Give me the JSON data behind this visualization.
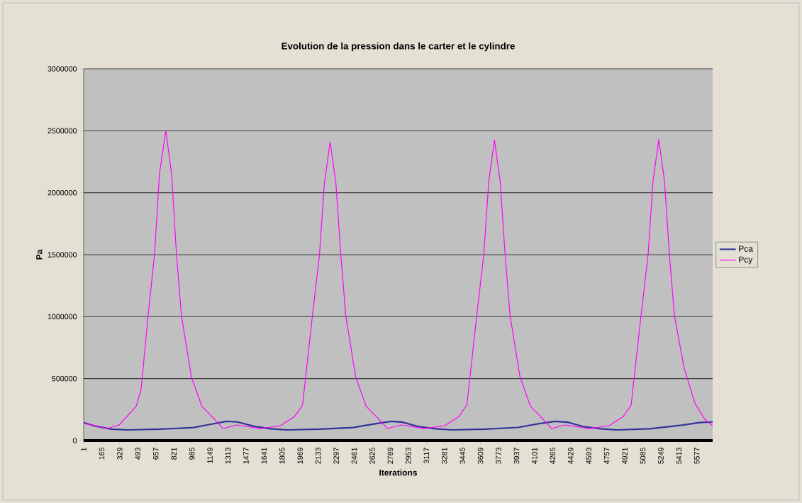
{
  "chart_data": {
    "type": "line",
    "title": "Evolution de la pression dans le carter et le cylindre",
    "xlabel": "Iterations",
    "ylabel": "Pa",
    "xlim": [
      1,
      5720
    ],
    "ylim": [
      0,
      3000000
    ],
    "xticks": [
      1,
      165,
      329,
      493,
      657,
      821,
      985,
      1149,
      1313,
      1477,
      1641,
      1805,
      1969,
      2133,
      2297,
      2461,
      2625,
      2789,
      2953,
      3117,
      3281,
      3445,
      3609,
      3773,
      3937,
      4101,
      4265,
      4429,
      4593,
      4757,
      4921,
      5085,
      5249,
      5413,
      5577
    ],
    "yticks": [
      0,
      500000,
      1000000,
      1500000,
      2000000,
      2500000,
      3000000
    ],
    "grid": "y",
    "legend": "right",
    "series": [
      {
        "name": "Pca",
        "color": "#333399",
        "x": [
          1,
          100,
          250,
          400,
          700,
          1000,
          1150,
          1300,
          1400,
          1550,
          1700,
          1850,
          2150,
          2450,
          2650,
          2800,
          2900,
          3050,
          3200,
          3350,
          3650,
          3950,
          4150,
          4290,
          4400,
          4550,
          4700,
          4850,
          5150,
          5450,
          5600,
          5720
        ],
        "values": [
          145000,
          118000,
          92000,
          86000,
          92000,
          105000,
          130000,
          155000,
          150000,
          115000,
          95000,
          86000,
          92000,
          105000,
          135000,
          155000,
          148000,
          112000,
          95000,
          86000,
          92000,
          106000,
          138000,
          155000,
          148000,
          112000,
          95000,
          86000,
          95000,
          125000,
          145000,
          150000
        ]
      },
      {
        "name": "Pcy",
        "color": "#ff00ff",
        "x": [
          1,
          213,
          323,
          478,
          523,
          587,
          645,
          690,
          748,
          800,
          845,
          890,
          980,
          1076,
          1166,
          1269,
          1392,
          1611,
          1791,
          1920,
          1991,
          2081,
          2145,
          2190,
          2242,
          2294,
          2339,
          2384,
          2474,
          2570,
          2660,
          2763,
          2886,
          3105,
          3285,
          3414,
          3485,
          3575,
          3639,
          3684,
          3736,
          3788,
          3833,
          3878,
          3968,
          4064,
          4154,
          4257,
          4380,
          4599,
          4779,
          4908,
          4979,
          5069,
          5133,
          5178,
          5230,
          5282,
          5327,
          5372,
          5462,
          5560,
          5650,
          5720
        ],
        "values": [
          140000,
          97000,
          126000,
          275000,
          412000,
          1008000,
          1500000,
          2153000,
          2500000,
          2153000,
          1500000,
          1008000,
          515000,
          275000,
          195000,
          97000,
          126000,
          97000,
          120000,
          195000,
          286000,
          1008000,
          1500000,
          2080000,
          2410000,
          2080000,
          1500000,
          1008000,
          515000,
          275000,
          195000,
          97000,
          126000,
          97000,
          120000,
          195000,
          286000,
          1008000,
          1500000,
          2090000,
          2425000,
          2090000,
          1500000,
          1008000,
          515000,
          275000,
          195000,
          97000,
          126000,
          97000,
          120000,
          195000,
          286000,
          1008000,
          1500000,
          2095000,
          2430000,
          2095000,
          1500000,
          1008000,
          580000,
          300000,
          170000,
          120000
        ]
      }
    ]
  }
}
